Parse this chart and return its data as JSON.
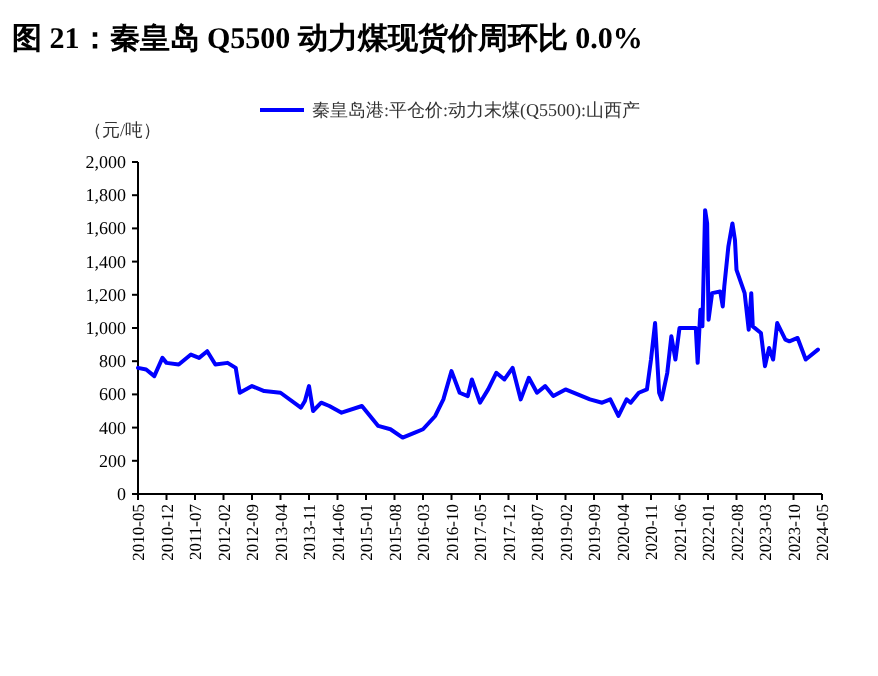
{
  "chart_data": {
    "type": "line",
    "title": "图 21：秦皇岛 Q5500 动力煤现货价周环比 0.0%",
    "ylabel": "（元/吨）",
    "legend": "top",
    "grid": false,
    "xlim": [
      "2010-05",
      "2024-05"
    ],
    "xticks": [
      "2010-05",
      "2010-12",
      "2011-07",
      "2012-02",
      "2012-09",
      "2013-04",
      "2013-11",
      "2014-06",
      "2015-01",
      "2015-08",
      "2016-03",
      "2016-10",
      "2017-05",
      "2017-12",
      "2018-07",
      "2019-02",
      "2019-09",
      "2020-04",
      "2020-11",
      "2021-06",
      "2022-01",
      "2022-08",
      "2023-03",
      "2023-10",
      "2024-05"
    ],
    "ylim": [
      0,
      2000
    ],
    "yticks": [
      {
        "value": 0,
        "label": "0"
      },
      {
        "value": 200,
        "label": "200"
      },
      {
        "value": 400,
        "label": "400"
      },
      {
        "value": 600,
        "label": "600"
      },
      {
        "value": 800,
        "label": "800"
      },
      {
        "value": 1000,
        "label": "1,000"
      },
      {
        "value": 1200,
        "label": "1,200"
      },
      {
        "value": 1400,
        "label": "1,400"
      },
      {
        "value": 1600,
        "label": "1,600"
      },
      {
        "value": 1800,
        "label": "1,800"
      },
      {
        "value": 2000,
        "label": "2,000"
      }
    ],
    "series": [
      {
        "name": "秦皇岛港:平仓价:动力末煤(Q5500):山西产",
        "color": "#0000ff",
        "x": [
          "2010-05-01",
          "2010-07-01",
          "2010-09-01",
          "2010-11-01",
          "2010-12-01",
          "2011-03-01",
          "2011-06-01",
          "2011-08-01",
          "2011-10-01",
          "2011-12-01",
          "2012-03-01",
          "2012-05-01",
          "2012-06-01",
          "2012-09-01",
          "2012-12-01",
          "2013-04-01",
          "2013-09-01",
          "2013-10-01",
          "2013-11-01",
          "2013-12-01",
          "2014-02-01",
          "2014-04-01",
          "2014-07-01",
          "2014-12-01",
          "2015-02-01",
          "2015-04-01",
          "2015-07-01",
          "2015-10-01",
          "2016-01-01",
          "2016-03-01",
          "2016-06-01",
          "2016-08-01",
          "2016-10-01",
          "2016-12-01",
          "2017-02-01",
          "2017-03-01",
          "2017-05-01",
          "2017-07-01",
          "2017-09-01",
          "2017-11-01",
          "2018-01-01",
          "2018-03-01",
          "2018-05-01",
          "2018-07-01",
          "2018-09-01",
          "2018-11-01",
          "2019-02-01",
          "2019-05-01",
          "2019-08-01",
          "2019-11-01",
          "2020-01-01",
          "2020-03-01",
          "2020-05-01",
          "2020-06-01",
          "2020-08-01",
          "2020-10-01",
          "2020-11-01",
          "2020-12-01",
          "2021-01-01",
          "2021-01-20",
          "2021-03-01",
          "2021-04-01",
          "2021-05-01",
          "2021-06-01",
          "2021-10-01",
          "2021-10-15",
          "2021-11-05",
          "2021-11-20",
          "2021-12-10",
          "2021-12-25",
          "2022-01-05",
          "2022-02-01",
          "2022-04-01",
          "2022-04-20",
          "2022-05-01",
          "2022-06-01",
          "2022-07-01",
          "2022-07-20",
          "2022-08-01",
          "2022-10-01",
          "2022-11-01",
          "2022-11-20",
          "2022-12-01",
          "2023-02-01",
          "2023-03-01",
          "2023-04-01",
          "2023-05-01",
          "2023-06-01",
          "2023-08-01",
          "2023-09-01",
          "2023-11-01",
          "2024-01-01",
          "2024-04-01"
        ],
        "values": [
          760,
          750,
          710,
          820,
          790,
          780,
          840,
          820,
          860,
          780,
          790,
          760,
          610,
          650,
          620,
          610,
          520,
          560,
          650,
          500,
          550,
          530,
          490,
          530,
          470,
          410,
          390,
          340,
          370,
          390,
          470,
          570,
          740,
          610,
          590,
          690,
          550,
          630,
          730,
          690,
          760,
          570,
          700,
          610,
          650,
          590,
          630,
          600,
          570,
          550,
          570,
          470,
          570,
          550,
          610,
          630,
          810,
          1030,
          610,
          570,
          730,
          950,
          810,
          1000,
          1000,
          790,
          1110,
          1010,
          1710,
          1630,
          1050,
          1210,
          1220,
          1130,
          1250,
          1490,
          1630,
          1530,
          1350,
          1210,
          990,
          1210,
          1010,
          970,
          770,
          880,
          810,
          1030,
          930,
          920,
          940,
          810,
          870
        ]
      }
    ]
  }
}
